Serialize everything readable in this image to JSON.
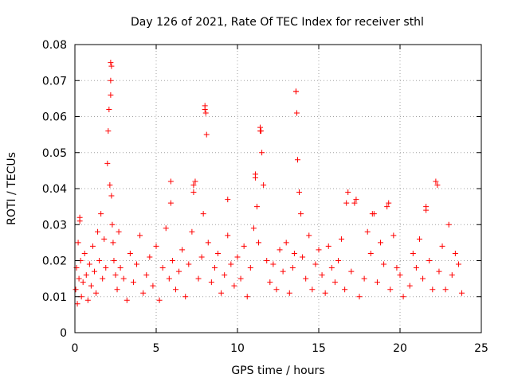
{
  "chart_data": {
    "type": "scatter",
    "title": "Day 126 of 2021, Rate Of TEC Index for receiver sthl",
    "xlabel": "GPS time / hours",
    "ylabel": "ROTI / TECUs",
    "xlim": [
      0,
      25
    ],
    "ylim": [
      0,
      0.08
    ],
    "x_ticks": [
      0,
      5,
      10,
      15,
      20,
      25
    ],
    "x_tick_labels": [
      "0",
      "5",
      "10",
      "15",
      "20",
      "25"
    ],
    "y_ticks": [
      0,
      0.01,
      0.02,
      0.03,
      0.04,
      0.05,
      0.06,
      0.07,
      0.08
    ],
    "y_tick_labels": [
      "0",
      "0.01",
      "0.02",
      "0.03",
      "0.04",
      "0.05",
      "0.06",
      "0.07",
      "0.08"
    ],
    "grid": true,
    "marker": "+",
    "marker_color": "#ff0000",
    "series": [
      {
        "name": "ROTI",
        "x": [
          0.05,
          0.1,
          0.15,
          0.2,
          0.25,
          0.3,
          0.35,
          0.4,
          0.5,
          0.6,
          0.7,
          0.8,
          0.9,
          1.0,
          1.1,
          1.2,
          1.3,
          1.4,
          1.5,
          1.6,
          1.7,
          1.8,
          1.9,
          2.0,
          2.05,
          2.1,
          2.15,
          2.2,
          2.25,
          2.3,
          2.35,
          2.4,
          2.5,
          2.6,
          2.7,
          2.8,
          3.0,
          3.2,
          3.4,
          3.6,
          3.8,
          4.0,
          4.2,
          4.4,
          4.6,
          4.8,
          5.0,
          5.2,
          5.4,
          5.6,
          5.8,
          5.9,
          6.0,
          6.2,
          6.4,
          6.6,
          6.8,
          7.0,
          7.2,
          7.3,
          7.4,
          7.6,
          7.8,
          7.9,
          8.0,
          8.1,
          8.2,
          8.4,
          8.6,
          8.8,
          9.0,
          9.2,
          9.4,
          9.6,
          9.8,
          10.0,
          10.2,
          10.4,
          10.6,
          10.8,
          11.0,
          11.1,
          11.2,
          11.3,
          11.4,
          11.5,
          11.6,
          11.8,
          12.0,
          12.2,
          12.4,
          12.6,
          12.8,
          13.0,
          13.2,
          13.4,
          13.5,
          13.6,
          13.7,
          13.8,
          13.9,
          14.0,
          14.2,
          14.4,
          14.6,
          14.8,
          15.0,
          15.2,
          15.4,
          15.6,
          15.8,
          16.0,
          16.2,
          16.4,
          16.6,
          16.8,
          17.0,
          17.2,
          17.5,
          17.8,
          18.0,
          18.2,
          18.4,
          18.6,
          18.8,
          19.0,
          19.2,
          19.4,
          19.6,
          19.8,
          20.0,
          20.2,
          20.6,
          20.8,
          21.0,
          21.2,
          21.4,
          21.6,
          21.8,
          22.0,
          22.2,
          22.4,
          22.6,
          22.8,
          23.0,
          23.2,
          23.4,
          23.6,
          23.8,
          0.3,
          2.2,
          2.25,
          2.2,
          8.0,
          8.05,
          11.4,
          11.45,
          13.6,
          13.65,
          22.3,
          11.1,
          5.9,
          7.3,
          19.3,
          18.3,
          21.6,
          17.3,
          9.4,
          16.7
        ],
        "y": [
          0.012,
          0.018,
          0.008,
          0.025,
          0.015,
          0.032,
          0.02,
          0.01,
          0.014,
          0.022,
          0.016,
          0.009,
          0.019,
          0.013,
          0.024,
          0.017,
          0.011,
          0.028,
          0.02,
          0.033,
          0.015,
          0.026,
          0.018,
          0.047,
          0.056,
          0.062,
          0.041,
          0.066,
          0.038,
          0.03,
          0.025,
          0.02,
          0.016,
          0.012,
          0.028,
          0.018,
          0.015,
          0.009,
          0.022,
          0.014,
          0.019,
          0.027,
          0.011,
          0.016,
          0.021,
          0.013,
          0.024,
          0.009,
          0.018,
          0.029,
          0.015,
          0.042,
          0.02,
          0.012,
          0.017,
          0.023,
          0.01,
          0.019,
          0.028,
          0.039,
          0.042,
          0.015,
          0.021,
          0.033,
          0.062,
          0.055,
          0.025,
          0.014,
          0.018,
          0.022,
          0.011,
          0.016,
          0.027,
          0.019,
          0.013,
          0.021,
          0.015,
          0.024,
          0.01,
          0.018,
          0.029,
          0.043,
          0.035,
          0.025,
          0.056,
          0.05,
          0.041,
          0.02,
          0.014,
          0.019,
          0.012,
          0.023,
          0.017,
          0.025,
          0.011,
          0.018,
          0.022,
          0.067,
          0.048,
          0.039,
          0.033,
          0.021,
          0.015,
          0.027,
          0.012,
          0.019,
          0.023,
          0.016,
          0.011,
          0.024,
          0.018,
          0.014,
          0.02,
          0.026,
          0.012,
          0.039,
          0.017,
          0.036,
          0.01,
          0.015,
          0.028,
          0.022,
          0.033,
          0.014,
          0.025,
          0.019,
          0.035,
          0.012,
          0.027,
          0.018,
          0.016,
          0.01,
          0.013,
          0.022,
          0.018,
          0.026,
          0.015,
          0.034,
          0.02,
          0.012,
          0.042,
          0.017,
          0.024,
          0.012,
          0.03,
          0.016,
          0.022,
          0.019,
          0.011,
          0.031,
          0.075,
          0.074,
          0.07,
          0.063,
          0.061,
          0.057,
          0.056,
          0.067,
          0.061,
          0.041,
          0.044,
          0.036,
          0.041,
          0.036,
          0.033,
          0.035,
          0.037,
          0.037,
          0.036
        ]
      }
    ]
  }
}
